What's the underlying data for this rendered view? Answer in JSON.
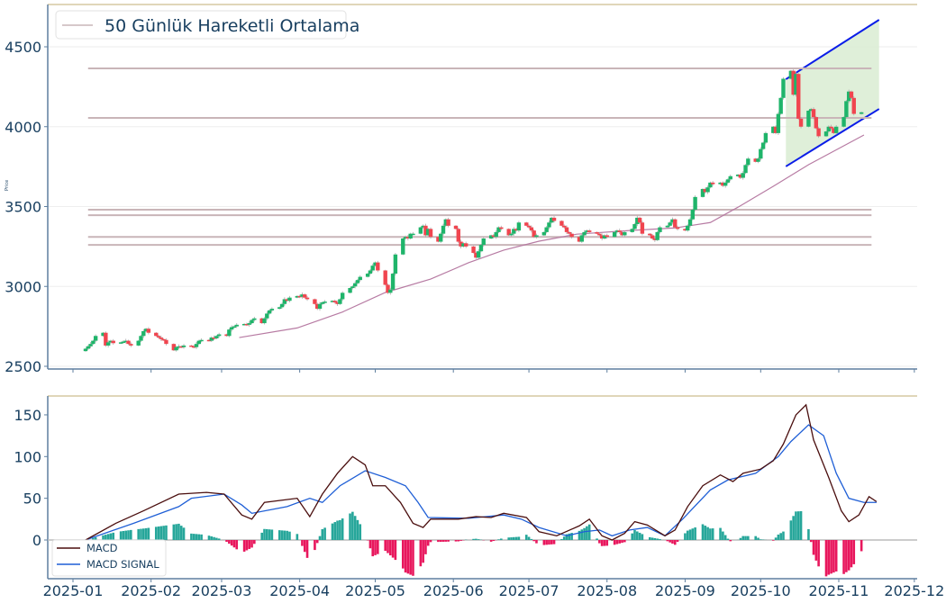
{
  "colors": {
    "up": "#1fb46a",
    "down": "#f0454f",
    "ma": "#b77ba3",
    "level": "#c9b5b8",
    "channel": "#0a1de8",
    "channel_fill": "#d7ebcf",
    "macd": "#4a0e0e",
    "signal": "#1f5fd6",
    "hist_pos": "#26a69a",
    "hist_neg": "#e8175d",
    "spine": "#5f7f9f",
    "top_spine": "#d6c9a2"
  },
  "chart_data": [
    {
      "type": "candlestick",
      "title": "",
      "ylabel": "Price",
      "ylim": [
        2500,
        4720
      ],
      "yticks": [
        "2500",
        "3000",
        "3500",
        "4000",
        "4500"
      ],
      "grid": true,
      "legend": {
        "placement": "top-left",
        "entries": [
          "50 Günlük Hareketli Ortalama"
        ]
      },
      "year": 2025,
      "candles_close": [
        [
          "01-06",
          2610
        ],
        [
          "01-07",
          2625
        ],
        [
          "01-08",
          2640
        ],
        [
          "01-09",
          2660
        ],
        [
          "01-10",
          2690
        ],
        [
          "01-13",
          2710
        ],
        [
          "01-14",
          2630
        ],
        [
          "01-15",
          2650
        ],
        [
          "01-16",
          2660
        ],
        [
          "01-17",
          2645
        ],
        [
          "01-20",
          2650
        ],
        [
          "01-21",
          2655
        ],
        [
          "01-22",
          2660
        ],
        [
          "01-23",
          2640
        ],
        [
          "01-24",
          2630
        ],
        [
          "01-27",
          2660
        ],
        [
          "01-28",
          2690
        ],
        [
          "01-29",
          2720
        ],
        [
          "01-30",
          2735
        ],
        [
          "01-31",
          2710
        ],
        [
          "02-03",
          2690
        ],
        [
          "02-04",
          2680
        ],
        [
          "02-05",
          2670
        ],
        [
          "02-06",
          2665
        ],
        [
          "02-07",
          2640
        ],
        [
          "02-10",
          2600
        ],
        [
          "02-11",
          2620
        ],
        [
          "02-12",
          2625
        ],
        [
          "02-13",
          2620
        ],
        [
          "02-14",
          2630
        ],
        [
          "02-17",
          2625
        ],
        [
          "02-18",
          2620
        ],
        [
          "02-19",
          2640
        ],
        [
          "02-20",
          2660
        ],
        [
          "02-21",
          2665
        ],
        [
          "02-24",
          2660
        ],
        [
          "02-25",
          2680
        ],
        [
          "02-26",
          2675
        ],
        [
          "02-27",
          2690
        ],
        [
          "02-28",
          2700
        ],
        [
          "03-03",
          2690
        ],
        [
          "03-04",
          2730
        ],
        [
          "03-05",
          2745
        ],
        [
          "03-06",
          2750
        ],
        [
          "03-07",
          2760
        ],
        [
          "03-10",
          2765
        ],
        [
          "03-11",
          2760
        ],
        [
          "03-12",
          2770
        ],
        [
          "03-13",
          2790
        ],
        [
          "03-14",
          2800
        ],
        [
          "03-17",
          2770
        ],
        [
          "03-18",
          2800
        ],
        [
          "03-19",
          2830
        ],
        [
          "03-20",
          2850
        ],
        [
          "03-21",
          2860
        ],
        [
          "03-24",
          2870
        ],
        [
          "03-25",
          2890
        ],
        [
          "03-26",
          2920
        ],
        [
          "03-27",
          2910
        ],
        [
          "03-28",
          2930
        ],
        [
          "03-31",
          2940
        ],
        [
          "04-01",
          2935
        ],
        [
          "04-02",
          2950
        ],
        [
          "04-03",
          2930
        ],
        [
          "04-04",
          2920
        ],
        [
          "04-07",
          2890
        ],
        [
          "04-08",
          2860
        ],
        [
          "04-09",
          2890
        ],
        [
          "04-10",
          2900
        ],
        [
          "04-11",
          2905
        ],
        [
          "04-14",
          2910
        ],
        [
          "04-15",
          2900
        ],
        [
          "04-16",
          2890
        ],
        [
          "04-17",
          2920
        ],
        [
          "04-18",
          2960
        ],
        [
          "04-21",
          2990
        ],
        [
          "04-22",
          3000
        ],
        [
          "04-23",
          3020
        ],
        [
          "04-24",
          3040
        ],
        [
          "04-25",
          3060
        ],
        [
          "04-28",
          3080
        ],
        [
          "04-29",
          3100
        ],
        [
          "04-30",
          3130
        ],
        [
          "05-01",
          3150
        ],
        [
          "05-02",
          3100
        ],
        [
          "05-05",
          3010
        ],
        [
          "05-06",
          2960
        ],
        [
          "05-07",
          2980
        ],
        [
          "05-08",
          3080
        ],
        [
          "05-09",
          3200
        ],
        [
          "05-12",
          3300
        ],
        [
          "05-13",
          3310
        ],
        [
          "05-14",
          3300
        ],
        [
          "05-15",
          3330
        ],
        [
          "05-16",
          3330
        ],
        [
          "05-19",
          3370
        ],
        [
          "05-20",
          3380
        ],
        [
          "05-21",
          3320
        ],
        [
          "05-22",
          3360
        ],
        [
          "05-23",
          3310
        ],
        [
          "05-26",
          3280
        ],
        [
          "05-27",
          3330
        ],
        [
          "05-28",
          3380
        ],
        [
          "05-29",
          3420
        ],
        [
          "05-30",
          3380
        ],
        [
          "06-02",
          3360
        ],
        [
          "06-03",
          3280
        ],
        [
          "06-04",
          3250
        ],
        [
          "06-05",
          3270
        ],
        [
          "06-06",
          3250
        ],
        [
          "06-09",
          3210
        ],
        [
          "06-10",
          3180
        ],
        [
          "06-11",
          3220
        ],
        [
          "06-12",
          3260
        ],
        [
          "06-13",
          3300
        ],
        [
          "06-16",
          3320
        ],
        [
          "06-17",
          3310
        ],
        [
          "06-18",
          3340
        ],
        [
          "06-19",
          3370
        ],
        [
          "06-20",
          3360
        ],
        [
          "06-23",
          3320
        ],
        [
          "06-24",
          3330
        ],
        [
          "06-25",
          3360
        ],
        [
          "06-26",
          3350
        ],
        [
          "06-27",
          3400
        ],
        [
          "06-30",
          3380
        ],
        [
          "07-01",
          3370
        ],
        [
          "07-02",
          3350
        ],
        [
          "07-03",
          3310
        ],
        [
          "07-04",
          3320
        ],
        [
          "07-07",
          3340
        ],
        [
          "07-08",
          3370
        ],
        [
          "07-09",
          3400
        ],
        [
          "07-10",
          3430
        ],
        [
          "07-11",
          3410
        ],
        [
          "07-14",
          3380
        ],
        [
          "07-15",
          3370
        ],
        [
          "07-16",
          3340
        ],
        [
          "07-17",
          3330
        ],
        [
          "07-18",
          3310
        ],
        [
          "07-21",
          3280
        ],
        [
          "07-22",
          3320
        ],
        [
          "07-23",
          3340
        ],
        [
          "07-24",
          3350
        ],
        [
          "07-25",
          3340
        ],
        [
          "07-28",
          3330
        ],
        [
          "07-29",
          3320
        ],
        [
          "07-30",
          3300
        ],
        [
          "07-31",
          3320
        ],
        [
          "08-01",
          3310
        ],
        [
          "08-04",
          3340
        ],
        [
          "08-05",
          3350
        ],
        [
          "08-06",
          3340
        ],
        [
          "08-07",
          3320
        ],
        [
          "08-08",
          3340
        ],
        [
          "08-11",
          3360
        ],
        [
          "08-12",
          3390
        ],
        [
          "08-13",
          3430
        ],
        [
          "08-14",
          3400
        ],
        [
          "08-15",
          3330
        ],
        [
          "08-18",
          3320
        ],
        [
          "08-19",
          3300
        ],
        [
          "08-20",
          3290
        ],
        [
          "08-21",
          3340
        ],
        [
          "08-22",
          3370
        ],
        [
          "08-25",
          3380
        ],
        [
          "08-26",
          3400
        ],
        [
          "08-27",
          3420
        ],
        [
          "08-28",
          3370
        ],
        [
          "08-29",
          3360
        ],
        [
          "09-01",
          3350
        ],
        [
          "09-02",
          3380
        ],
        [
          "09-03",
          3420
        ],
        [
          "09-04",
          3480
        ],
        [
          "09-05",
          3560
        ],
        [
          "09-08",
          3610
        ],
        [
          "09-09",
          3590
        ],
        [
          "09-10",
          3620
        ],
        [
          "09-11",
          3650
        ],
        [
          "09-12",
          3640
        ],
        [
          "09-15",
          3650
        ],
        [
          "09-16",
          3630
        ],
        [
          "09-17",
          3650
        ],
        [
          "09-18",
          3670
        ],
        [
          "09-19",
          3690
        ],
        [
          "09-22",
          3700
        ],
        [
          "09-23",
          3680
        ],
        [
          "09-24",
          3710
        ],
        [
          "09-25",
          3760
        ],
        [
          "09-26",
          3800
        ],
        [
          "09-29",
          3780
        ],
        [
          "09-30",
          3800
        ],
        [
          "10-01",
          3860
        ],
        [
          "10-02",
          3900
        ],
        [
          "10-03",
          3960
        ],
        [
          "10-06",
          4000
        ],
        [
          "10-07",
          3960
        ],
        [
          "10-08",
          4080
        ],
        [
          "10-09",
          4180
        ],
        [
          "10-10",
          4300
        ],
        [
          "10-13",
          4350
        ],
        [
          "10-14",
          4200
        ],
        [
          "10-15",
          4330
        ],
        [
          "10-16",
          4050
        ],
        [
          "10-17",
          4000
        ],
        [
          "10-20",
          4100
        ],
        [
          "10-21",
          4110
        ],
        [
          "10-22",
          4060
        ],
        [
          "10-23",
          3990
        ],
        [
          "10-24",
          3940
        ],
        [
          "10-27",
          3970
        ],
        [
          "10-28",
          4000
        ],
        [
          "10-29",
          3990
        ],
        [
          "10-30",
          3960
        ],
        [
          "10-31",
          4000
        ],
        [
          "11-03",
          4060
        ],
        [
          "11-04",
          4160
        ],
        [
          "11-05",
          4220
        ],
        [
          "11-06",
          4180
        ],
        [
          "11-07",
          4080
        ],
        [
          "11-10",
          4090
        ]
      ],
      "ma50": [
        [
          "03-08",
          2680
        ],
        [
          "03-31",
          2740
        ],
        [
          "04-18",
          2840
        ],
        [
          "05-05",
          2962
        ],
        [
          "05-23",
          3046
        ],
        [
          "06-07",
          3148
        ],
        [
          "06-21",
          3227
        ],
        [
          "07-05",
          3283
        ],
        [
          "07-20",
          3327
        ],
        [
          "08-10",
          3350
        ],
        [
          "08-28",
          3366
        ],
        [
          "09-11",
          3400
        ],
        [
          "09-22",
          3496
        ],
        [
          "10-06",
          3627
        ],
        [
          "10-20",
          3762
        ],
        [
          "11-11",
          3948
        ]
      ],
      "levels": [
        4365,
        4055,
        3480,
        3446,
        3310,
        3260
      ],
      "levels_range": [
        "01-07",
        "11-14"
      ],
      "channel": {
        "upper": [
          [
            "10-11",
            4297
          ],
          [
            "11-17",
            4669
          ]
        ],
        "lower": [
          [
            "10-11",
            3751
          ],
          [
            "11-17",
            4111
          ]
        ]
      }
    },
    {
      "type": "line",
      "ylabel": "",
      "ylim": [
        -45,
        172
      ],
      "yticks": [
        "0",
        "50",
        "100",
        "150"
      ],
      "xticks": [
        "2025-01",
        "2025-02",
        "2025-03",
        "2025-04",
        "2025-05",
        "2025-06",
        "2025-07",
        "2025-08",
        "2025-09",
        "2025-10",
        "2025-11",
        "2025-12"
      ],
      "legend": {
        "placement": "bottom-left",
        "entries": [
          "MACD",
          "MACD SIGNAL"
        ]
      },
      "macd": [
        [
          "01-06",
          0
        ],
        [
          "01-18",
          20
        ],
        [
          "01-29",
          35
        ],
        [
          "02-12",
          55
        ],
        [
          "02-23",
          57
        ],
        [
          "03-02",
          55
        ],
        [
          "03-09",
          30
        ],
        [
          "03-13",
          25
        ],
        [
          "03-18",
          45
        ],
        [
          "03-31",
          50
        ],
        [
          "04-05",
          28
        ],
        [
          "04-10",
          55
        ],
        [
          "04-16",
          80
        ],
        [
          "04-22",
          100
        ],
        [
          "04-27",
          90
        ],
        [
          "04-30",
          65
        ],
        [
          "05-05",
          65
        ],
        [
          "05-11",
          45
        ],
        [
          "05-16",
          20
        ],
        [
          "05-20",
          15
        ],
        [
          "05-23",
          25
        ],
        [
          "06-03",
          25
        ],
        [
          "06-10",
          28
        ],
        [
          "06-16",
          27
        ],
        [
          "06-21",
          32
        ],
        [
          "06-30",
          27
        ],
        [
          "07-05",
          10
        ],
        [
          "07-12",
          5
        ],
        [
          "07-21",
          17
        ],
        [
          "07-25",
          25
        ],
        [
          "07-30",
          5
        ],
        [
          "08-03",
          0
        ],
        [
          "08-08",
          8
        ],
        [
          "08-12",
          22
        ],
        [
          "08-17",
          18
        ],
        [
          "08-24",
          5
        ],
        [
          "08-28",
          12
        ],
        [
          "09-02",
          40
        ],
        [
          "09-08",
          65
        ],
        [
          "09-15",
          78
        ],
        [
          "09-20",
          70
        ],
        [
          "09-24",
          80
        ],
        [
          "10-01",
          85
        ],
        [
          "10-06",
          95
        ],
        [
          "10-10",
          115
        ],
        [
          "10-15",
          150
        ],
        [
          "10-19",
          162
        ],
        [
          "10-22",
          120
        ],
        [
          "10-28",
          75
        ],
        [
          "11-02",
          35
        ],
        [
          "11-05",
          22
        ],
        [
          "11-09",
          30
        ],
        [
          "11-13",
          52
        ],
        [
          "11-16",
          46
        ]
      ],
      "signal": [
        [
          "01-06",
          0
        ],
        [
          "01-25",
          20
        ],
        [
          "02-12",
          40
        ],
        [
          "02-17",
          50
        ],
        [
          "03-02",
          55
        ],
        [
          "03-09",
          42
        ],
        [
          "03-13",
          32
        ],
        [
          "03-27",
          40
        ],
        [
          "04-05",
          50
        ],
        [
          "04-10",
          45
        ],
        [
          "04-17",
          65
        ],
        [
          "04-27",
          83
        ],
        [
          "05-05",
          75
        ],
        [
          "05-13",
          65
        ],
        [
          "05-18",
          45
        ],
        [
          "05-22",
          27
        ],
        [
          "06-07",
          26
        ],
        [
          "06-21",
          30
        ],
        [
          "06-28",
          25
        ],
        [
          "07-05",
          15
        ],
        [
          "07-16",
          5
        ],
        [
          "07-23",
          10
        ],
        [
          "07-29",
          12
        ],
        [
          "08-03",
          5
        ],
        [
          "08-10",
          12
        ],
        [
          "08-17",
          15
        ],
        [
          "08-24",
          5
        ],
        [
          "08-31",
          25
        ],
        [
          "09-11",
          60
        ],
        [
          "09-18",
          72
        ],
        [
          "09-29",
          80
        ],
        [
          "10-08",
          100
        ],
        [
          "10-13",
          118
        ],
        [
          "10-20",
          138
        ],
        [
          "10-26",
          125
        ],
        [
          "10-31",
          80
        ],
        [
          "11-05",
          50
        ],
        [
          "11-11",
          45
        ],
        [
          "11-16",
          45
        ]
      ]
    }
  ]
}
